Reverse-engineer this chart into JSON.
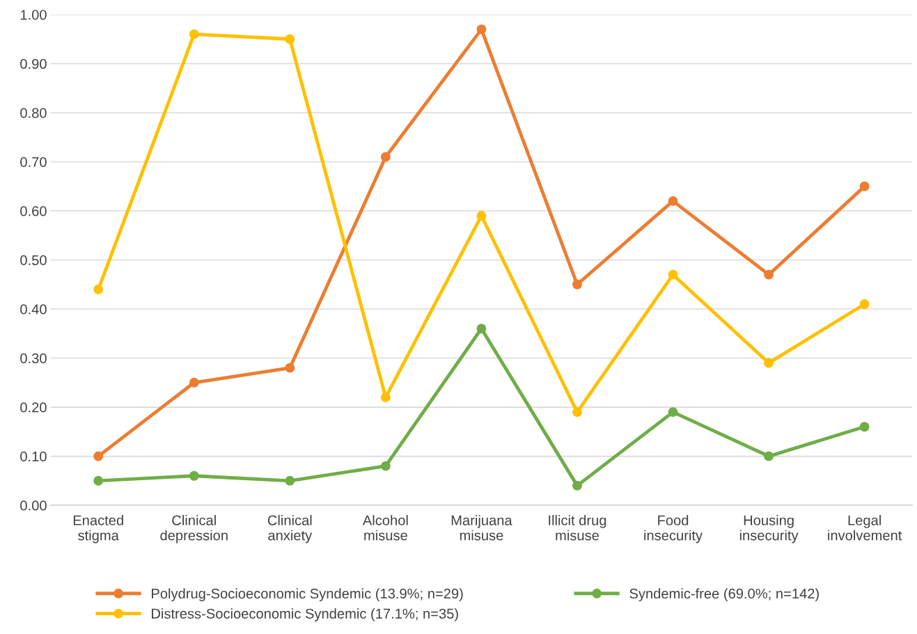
{
  "chart_data": {
    "type": "line",
    "categories": [
      "Enacted\nstigma",
      "Clinical\ndepression",
      "Clinical\nanxiety",
      "Alcohol\nmisuse",
      "Marijuana\nmisuse",
      "Illicit drug\nmisuse",
      "Food\ninsecurity",
      "Housing\ninsecurity",
      "Legal\ninvolvement"
    ],
    "series": [
      {
        "name": "Polydrug-Socioeconomic Syndemic (13.9%; n=29)",
        "color": "#ed7d31",
        "values": [
          0.1,
          0.25,
          0.28,
          0.71,
          0.97,
          0.45,
          0.62,
          0.47,
          0.65
        ]
      },
      {
        "name": "Distress-Socioeconomic Syndemic (17.1%; n=35)",
        "color": "#ffc000",
        "values": [
          0.44,
          0.96,
          0.95,
          0.22,
          0.59,
          0.19,
          0.47,
          0.29,
          0.41
        ]
      },
      {
        "name": "Syndemic-free (69.0%; n=142)",
        "color": "#70ad47",
        "values": [
          0.05,
          0.06,
          0.05,
          0.08,
          0.36,
          0.04,
          0.19,
          0.1,
          0.16
        ]
      }
    ],
    "ylim": [
      0,
      1
    ],
    "yticks": [
      {
        "value": 0,
        "label": "0.00"
      },
      {
        "value": 0.1,
        "label": "0.10"
      },
      {
        "value": 0.2,
        "label": "0.20"
      },
      {
        "value": 0.3,
        "label": "0.30"
      },
      {
        "value": 0.4,
        "label": "0.40"
      },
      {
        "value": 0.5,
        "label": "0.50"
      },
      {
        "value": 0.6,
        "label": "0.60"
      },
      {
        "value": 0.7,
        "label": "0.70"
      },
      {
        "value": 0.8,
        "label": "0.80"
      },
      {
        "value": 0.9,
        "label": "0.90"
      },
      {
        "value": 1,
        "label": "1.00"
      }
    ],
    "grid": "y",
    "legend": "bottom",
    "marker": "circle",
    "line_style": "solid"
  }
}
